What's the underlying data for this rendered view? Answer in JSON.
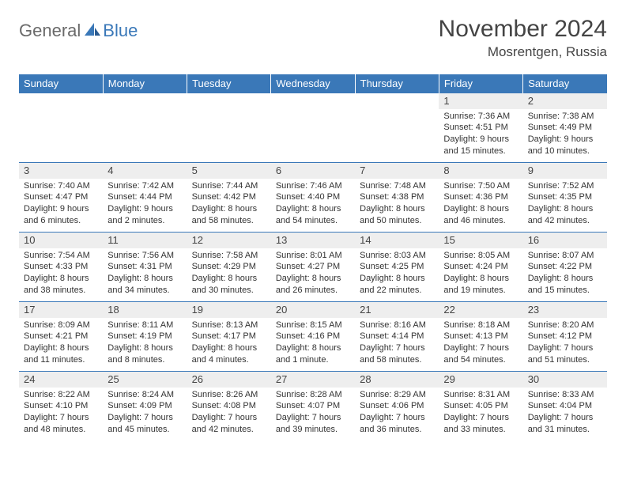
{
  "brand": {
    "general": "General",
    "blue": "Blue"
  },
  "title": "November 2024",
  "location": "Mosrentgen, Russia",
  "colors": {
    "header_bg": "#3a78b8",
    "header_text": "#ffffff",
    "daynum_bg": "#eeeeee",
    "border": "#3a78b8",
    "text": "#333333",
    "logo_gray": "#6a6a6a"
  },
  "day_names": [
    "Sunday",
    "Monday",
    "Tuesday",
    "Wednesday",
    "Thursday",
    "Friday",
    "Saturday"
  ],
  "weeks": [
    [
      {
        "n": "",
        "sr": "",
        "ss": "",
        "dl": ""
      },
      {
        "n": "",
        "sr": "",
        "ss": "",
        "dl": ""
      },
      {
        "n": "",
        "sr": "",
        "ss": "",
        "dl": ""
      },
      {
        "n": "",
        "sr": "",
        "ss": "",
        "dl": ""
      },
      {
        "n": "",
        "sr": "",
        "ss": "",
        "dl": ""
      },
      {
        "n": "1",
        "sr": "Sunrise: 7:36 AM",
        "ss": "Sunset: 4:51 PM",
        "dl": "Daylight: 9 hours and 15 minutes."
      },
      {
        "n": "2",
        "sr": "Sunrise: 7:38 AM",
        "ss": "Sunset: 4:49 PM",
        "dl": "Daylight: 9 hours and 10 minutes."
      }
    ],
    [
      {
        "n": "3",
        "sr": "Sunrise: 7:40 AM",
        "ss": "Sunset: 4:47 PM",
        "dl": "Daylight: 9 hours and 6 minutes."
      },
      {
        "n": "4",
        "sr": "Sunrise: 7:42 AM",
        "ss": "Sunset: 4:44 PM",
        "dl": "Daylight: 9 hours and 2 minutes."
      },
      {
        "n": "5",
        "sr": "Sunrise: 7:44 AM",
        "ss": "Sunset: 4:42 PM",
        "dl": "Daylight: 8 hours and 58 minutes."
      },
      {
        "n": "6",
        "sr": "Sunrise: 7:46 AM",
        "ss": "Sunset: 4:40 PM",
        "dl": "Daylight: 8 hours and 54 minutes."
      },
      {
        "n": "7",
        "sr": "Sunrise: 7:48 AM",
        "ss": "Sunset: 4:38 PM",
        "dl": "Daylight: 8 hours and 50 minutes."
      },
      {
        "n": "8",
        "sr": "Sunrise: 7:50 AM",
        "ss": "Sunset: 4:36 PM",
        "dl": "Daylight: 8 hours and 46 minutes."
      },
      {
        "n": "9",
        "sr": "Sunrise: 7:52 AM",
        "ss": "Sunset: 4:35 PM",
        "dl": "Daylight: 8 hours and 42 minutes."
      }
    ],
    [
      {
        "n": "10",
        "sr": "Sunrise: 7:54 AM",
        "ss": "Sunset: 4:33 PM",
        "dl": "Daylight: 8 hours and 38 minutes."
      },
      {
        "n": "11",
        "sr": "Sunrise: 7:56 AM",
        "ss": "Sunset: 4:31 PM",
        "dl": "Daylight: 8 hours and 34 minutes."
      },
      {
        "n": "12",
        "sr": "Sunrise: 7:58 AM",
        "ss": "Sunset: 4:29 PM",
        "dl": "Daylight: 8 hours and 30 minutes."
      },
      {
        "n": "13",
        "sr": "Sunrise: 8:01 AM",
        "ss": "Sunset: 4:27 PM",
        "dl": "Daylight: 8 hours and 26 minutes."
      },
      {
        "n": "14",
        "sr": "Sunrise: 8:03 AM",
        "ss": "Sunset: 4:25 PM",
        "dl": "Daylight: 8 hours and 22 minutes."
      },
      {
        "n": "15",
        "sr": "Sunrise: 8:05 AM",
        "ss": "Sunset: 4:24 PM",
        "dl": "Daylight: 8 hours and 19 minutes."
      },
      {
        "n": "16",
        "sr": "Sunrise: 8:07 AM",
        "ss": "Sunset: 4:22 PM",
        "dl": "Daylight: 8 hours and 15 minutes."
      }
    ],
    [
      {
        "n": "17",
        "sr": "Sunrise: 8:09 AM",
        "ss": "Sunset: 4:21 PM",
        "dl": "Daylight: 8 hours and 11 minutes."
      },
      {
        "n": "18",
        "sr": "Sunrise: 8:11 AM",
        "ss": "Sunset: 4:19 PM",
        "dl": "Daylight: 8 hours and 8 minutes."
      },
      {
        "n": "19",
        "sr": "Sunrise: 8:13 AM",
        "ss": "Sunset: 4:17 PM",
        "dl": "Daylight: 8 hours and 4 minutes."
      },
      {
        "n": "20",
        "sr": "Sunrise: 8:15 AM",
        "ss": "Sunset: 4:16 PM",
        "dl": "Daylight: 8 hours and 1 minute."
      },
      {
        "n": "21",
        "sr": "Sunrise: 8:16 AM",
        "ss": "Sunset: 4:14 PM",
        "dl": "Daylight: 7 hours and 58 minutes."
      },
      {
        "n": "22",
        "sr": "Sunrise: 8:18 AM",
        "ss": "Sunset: 4:13 PM",
        "dl": "Daylight: 7 hours and 54 minutes."
      },
      {
        "n": "23",
        "sr": "Sunrise: 8:20 AM",
        "ss": "Sunset: 4:12 PM",
        "dl": "Daylight: 7 hours and 51 minutes."
      }
    ],
    [
      {
        "n": "24",
        "sr": "Sunrise: 8:22 AM",
        "ss": "Sunset: 4:10 PM",
        "dl": "Daylight: 7 hours and 48 minutes."
      },
      {
        "n": "25",
        "sr": "Sunrise: 8:24 AM",
        "ss": "Sunset: 4:09 PM",
        "dl": "Daylight: 7 hours and 45 minutes."
      },
      {
        "n": "26",
        "sr": "Sunrise: 8:26 AM",
        "ss": "Sunset: 4:08 PM",
        "dl": "Daylight: 7 hours and 42 minutes."
      },
      {
        "n": "27",
        "sr": "Sunrise: 8:28 AM",
        "ss": "Sunset: 4:07 PM",
        "dl": "Daylight: 7 hours and 39 minutes."
      },
      {
        "n": "28",
        "sr": "Sunrise: 8:29 AM",
        "ss": "Sunset: 4:06 PM",
        "dl": "Daylight: 7 hours and 36 minutes."
      },
      {
        "n": "29",
        "sr": "Sunrise: 8:31 AM",
        "ss": "Sunset: 4:05 PM",
        "dl": "Daylight: 7 hours and 33 minutes."
      },
      {
        "n": "30",
        "sr": "Sunrise: 8:33 AM",
        "ss": "Sunset: 4:04 PM",
        "dl": "Daylight: 7 hours and 31 minutes."
      }
    ]
  ]
}
